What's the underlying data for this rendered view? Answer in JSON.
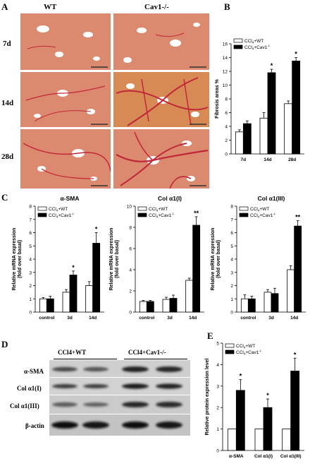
{
  "panels": {
    "A": "A",
    "B": "B",
    "C": "C",
    "D": "D",
    "E": "E"
  },
  "histology": {
    "cols": [
      "WT",
      "Cav1-/-"
    ],
    "rows": [
      "7d",
      "14d",
      "28d"
    ]
  },
  "colors": {
    "tissue": "#dc8a6f",
    "fibrosis": "#c0283a",
    "open": "#ffffff",
    "filled": "#000000"
  },
  "blot": {
    "groups": [
      "CCl4+WT",
      "CCl4+Cav1-/-"
    ],
    "rows": [
      "α-SMA",
      "Col α1(I)",
      "Col α1(III)",
      "β-actin"
    ]
  },
  "chart_data": [
    {
      "panel": "B",
      "type": "bar",
      "categories": [
        "7d",
        "14d",
        "28d"
      ],
      "ylabel": "Fibrosis areas %",
      "ylim": [
        0,
        16
      ],
      "yticks": [
        0,
        2,
        4,
        6,
        8,
        10,
        12,
        14,
        16
      ],
      "series": [
        {
          "name": "CCl4+WT",
          "values": [
            3.2,
            5.2,
            7.3
          ],
          "errors": [
            0.3,
            0.8,
            0.4
          ],
          "fill": "open"
        },
        {
          "name": "CCl4+Cav1-/-",
          "values": [
            4.4,
            11.8,
            13.5
          ],
          "errors": [
            0.4,
            0.5,
            0.5
          ],
          "fill": "filled"
        }
      ],
      "annotations": [
        {
          "category": "14d",
          "text": "*"
        },
        {
          "category": "28d",
          "text": "*"
        }
      ],
      "legend": "top-left"
    },
    {
      "panel": "C1",
      "type": "bar",
      "title": "α-SMA",
      "categories": [
        "control",
        "3d",
        "14d"
      ],
      "ylabel": "Relative mRNA expression (fold over basal)",
      "ylim": [
        0,
        8
      ],
      "yticks": [
        0,
        1,
        2,
        3,
        4,
        5,
        6,
        7,
        8
      ],
      "series": [
        {
          "name": "CCl4+WT",
          "values": [
            1.0,
            1.5,
            2.0
          ],
          "errors": [
            0.1,
            0.2,
            0.3
          ],
          "fill": "open"
        },
        {
          "name": "CCl4+Cav1-/-",
          "values": [
            1.0,
            2.8,
            5.2
          ],
          "errors": [
            0.2,
            0.3,
            0.8
          ],
          "fill": "filled"
        }
      ],
      "annotations": [
        {
          "category": "3d",
          "text": "*"
        },
        {
          "category": "14d",
          "text": "*"
        }
      ],
      "legend": "top-left"
    },
    {
      "panel": "C2",
      "type": "bar",
      "title": "Col α1(I)",
      "categories": [
        "control",
        "3d",
        "14d"
      ],
      "ylabel": "Relative mRNA expression (fold over basal)",
      "ylim": [
        0,
        10
      ],
      "yticks": [
        0,
        2,
        4,
        6,
        8,
        10
      ],
      "series": [
        {
          "name": "CCl4+WT",
          "values": [
            1.0,
            1.2,
            3.0
          ],
          "errors": [
            0.1,
            0.2,
            0.2
          ],
          "fill": "open"
        },
        {
          "name": "CCl4+Cav1-/-",
          "values": [
            1.0,
            1.3,
            8.2
          ],
          "errors": [
            0.1,
            0.3,
            0.8
          ],
          "fill": "filled"
        }
      ],
      "annotations": [
        {
          "category": "14d",
          "text": "**"
        }
      ],
      "legend": "top-left"
    },
    {
      "panel": "C3",
      "type": "bar",
      "title": "Col α1(III)",
      "categories": [
        "control",
        "3d",
        "14d"
      ],
      "ylabel": "Relative mRNA expression (fold over basal)",
      "ylim": [
        0,
        8
      ],
      "yticks": [
        0,
        1,
        2,
        3,
        4,
        5,
        6,
        7,
        8
      ],
      "series": [
        {
          "name": "CCl4+WT",
          "values": [
            1.0,
            1.5,
            3.2
          ],
          "errors": [
            0.3,
            0.2,
            0.3
          ],
          "fill": "open"
        },
        {
          "name": "CCl4+Cav1-/-",
          "values": [
            1.0,
            1.4,
            6.5
          ],
          "errors": [
            0.2,
            0.4,
            0.4
          ],
          "fill": "filled"
        }
      ],
      "annotations": [
        {
          "category": "14d",
          "text": "**"
        }
      ],
      "legend": "top-left"
    },
    {
      "panel": "E",
      "type": "bar",
      "categories": [
        "α-SMA",
        "Col α1(I)",
        "Col α1(III)"
      ],
      "ylabel": "Relative protein expression level",
      "ylim": [
        0,
        5
      ],
      "yticks": [
        0,
        1,
        2,
        3,
        4,
        5
      ],
      "series": [
        {
          "name": "CCl4+WT",
          "values": [
            1.0,
            1.0,
            1.0
          ],
          "errors": [
            0,
            0,
            0
          ],
          "fill": "open"
        },
        {
          "name": "CCl4+Cav1-/-",
          "values": [
            2.8,
            2.0,
            3.7
          ],
          "errors": [
            0.5,
            0.4,
            0.6
          ],
          "fill": "filled"
        }
      ],
      "annotations": [
        {
          "category": "α-SMA",
          "text": "*"
        },
        {
          "category": "Col α1(I)",
          "text": "*"
        },
        {
          "category": "Col α1(III)",
          "text": "*"
        }
      ],
      "legend": "top-left"
    }
  ]
}
